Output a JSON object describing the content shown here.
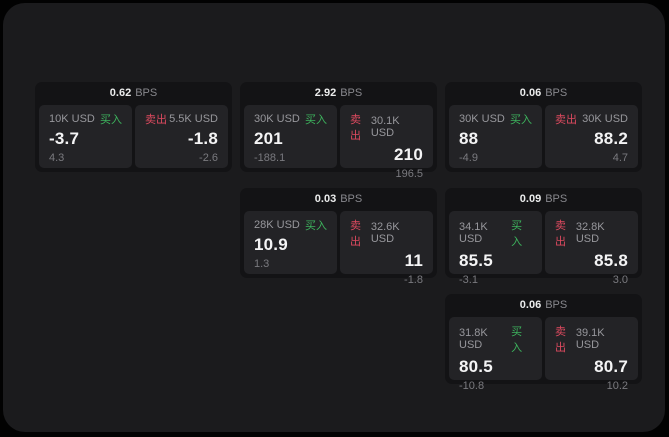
{
  "labels": {
    "buy": "买入",
    "sell": "卖出",
    "bps_unit": "BPS"
  },
  "colors": {
    "background": "#020202",
    "surface": "#1b1b1d",
    "card": "#131315",
    "panel": "#232326",
    "buy_green": "#3db35d",
    "sell_red": "#dd4a5f"
  },
  "cards": [
    {
      "row": 1,
      "col": 1,
      "spread": "0.62",
      "unit": "BPS",
      "buy": {
        "amount": "10K USD",
        "label": "买入",
        "price": "-3.7",
        "sub": "4.3"
      },
      "sell": {
        "amount": "5.5K USD",
        "label": "卖出",
        "price": "-1.8",
        "sub": "-2.6"
      }
    },
    {
      "row": 1,
      "col": 2,
      "spread": "2.92",
      "unit": "BPS",
      "buy": {
        "amount": "30K USD",
        "label": "买入",
        "price": "201",
        "sub": "-188.1"
      },
      "sell": {
        "amount": "30.1K USD",
        "label": "卖出",
        "price": "210",
        "sub": "196.5"
      }
    },
    {
      "row": 1,
      "col": 3,
      "spread": "0.06",
      "unit": "BPS",
      "buy": {
        "amount": "30K USD",
        "label": "买入",
        "price": "88",
        "sub": "-4.9"
      },
      "sell": {
        "amount": "30K USD",
        "label": "卖出",
        "price": "88.2",
        "sub": "4.7"
      }
    },
    {
      "row": 2,
      "col": 2,
      "spread": "0.03",
      "unit": "BPS",
      "buy": {
        "amount": "28K USD",
        "label": "买入",
        "price": "10.9",
        "sub": "1.3"
      },
      "sell": {
        "amount": "32.6K USD",
        "label": "卖出",
        "price": "11",
        "sub": "-1.8"
      }
    },
    {
      "row": 2,
      "col": 3,
      "spread": "0.09",
      "unit": "BPS",
      "buy": {
        "amount": "34.1K USD",
        "label": "买入",
        "price": "85.5",
        "sub": "-3.1"
      },
      "sell": {
        "amount": "32.8K USD",
        "label": "卖出",
        "price": "85.8",
        "sub": "3.0"
      }
    },
    {
      "row": 3,
      "col": 3,
      "spread": "0.06",
      "unit": "BPS",
      "buy": {
        "amount": "31.8K USD",
        "label": "买入",
        "price": "80.5",
        "sub": "-10.8"
      },
      "sell": {
        "amount": "39.1K USD",
        "label": "卖出",
        "price": "80.7",
        "sub": "10.2"
      }
    }
  ]
}
